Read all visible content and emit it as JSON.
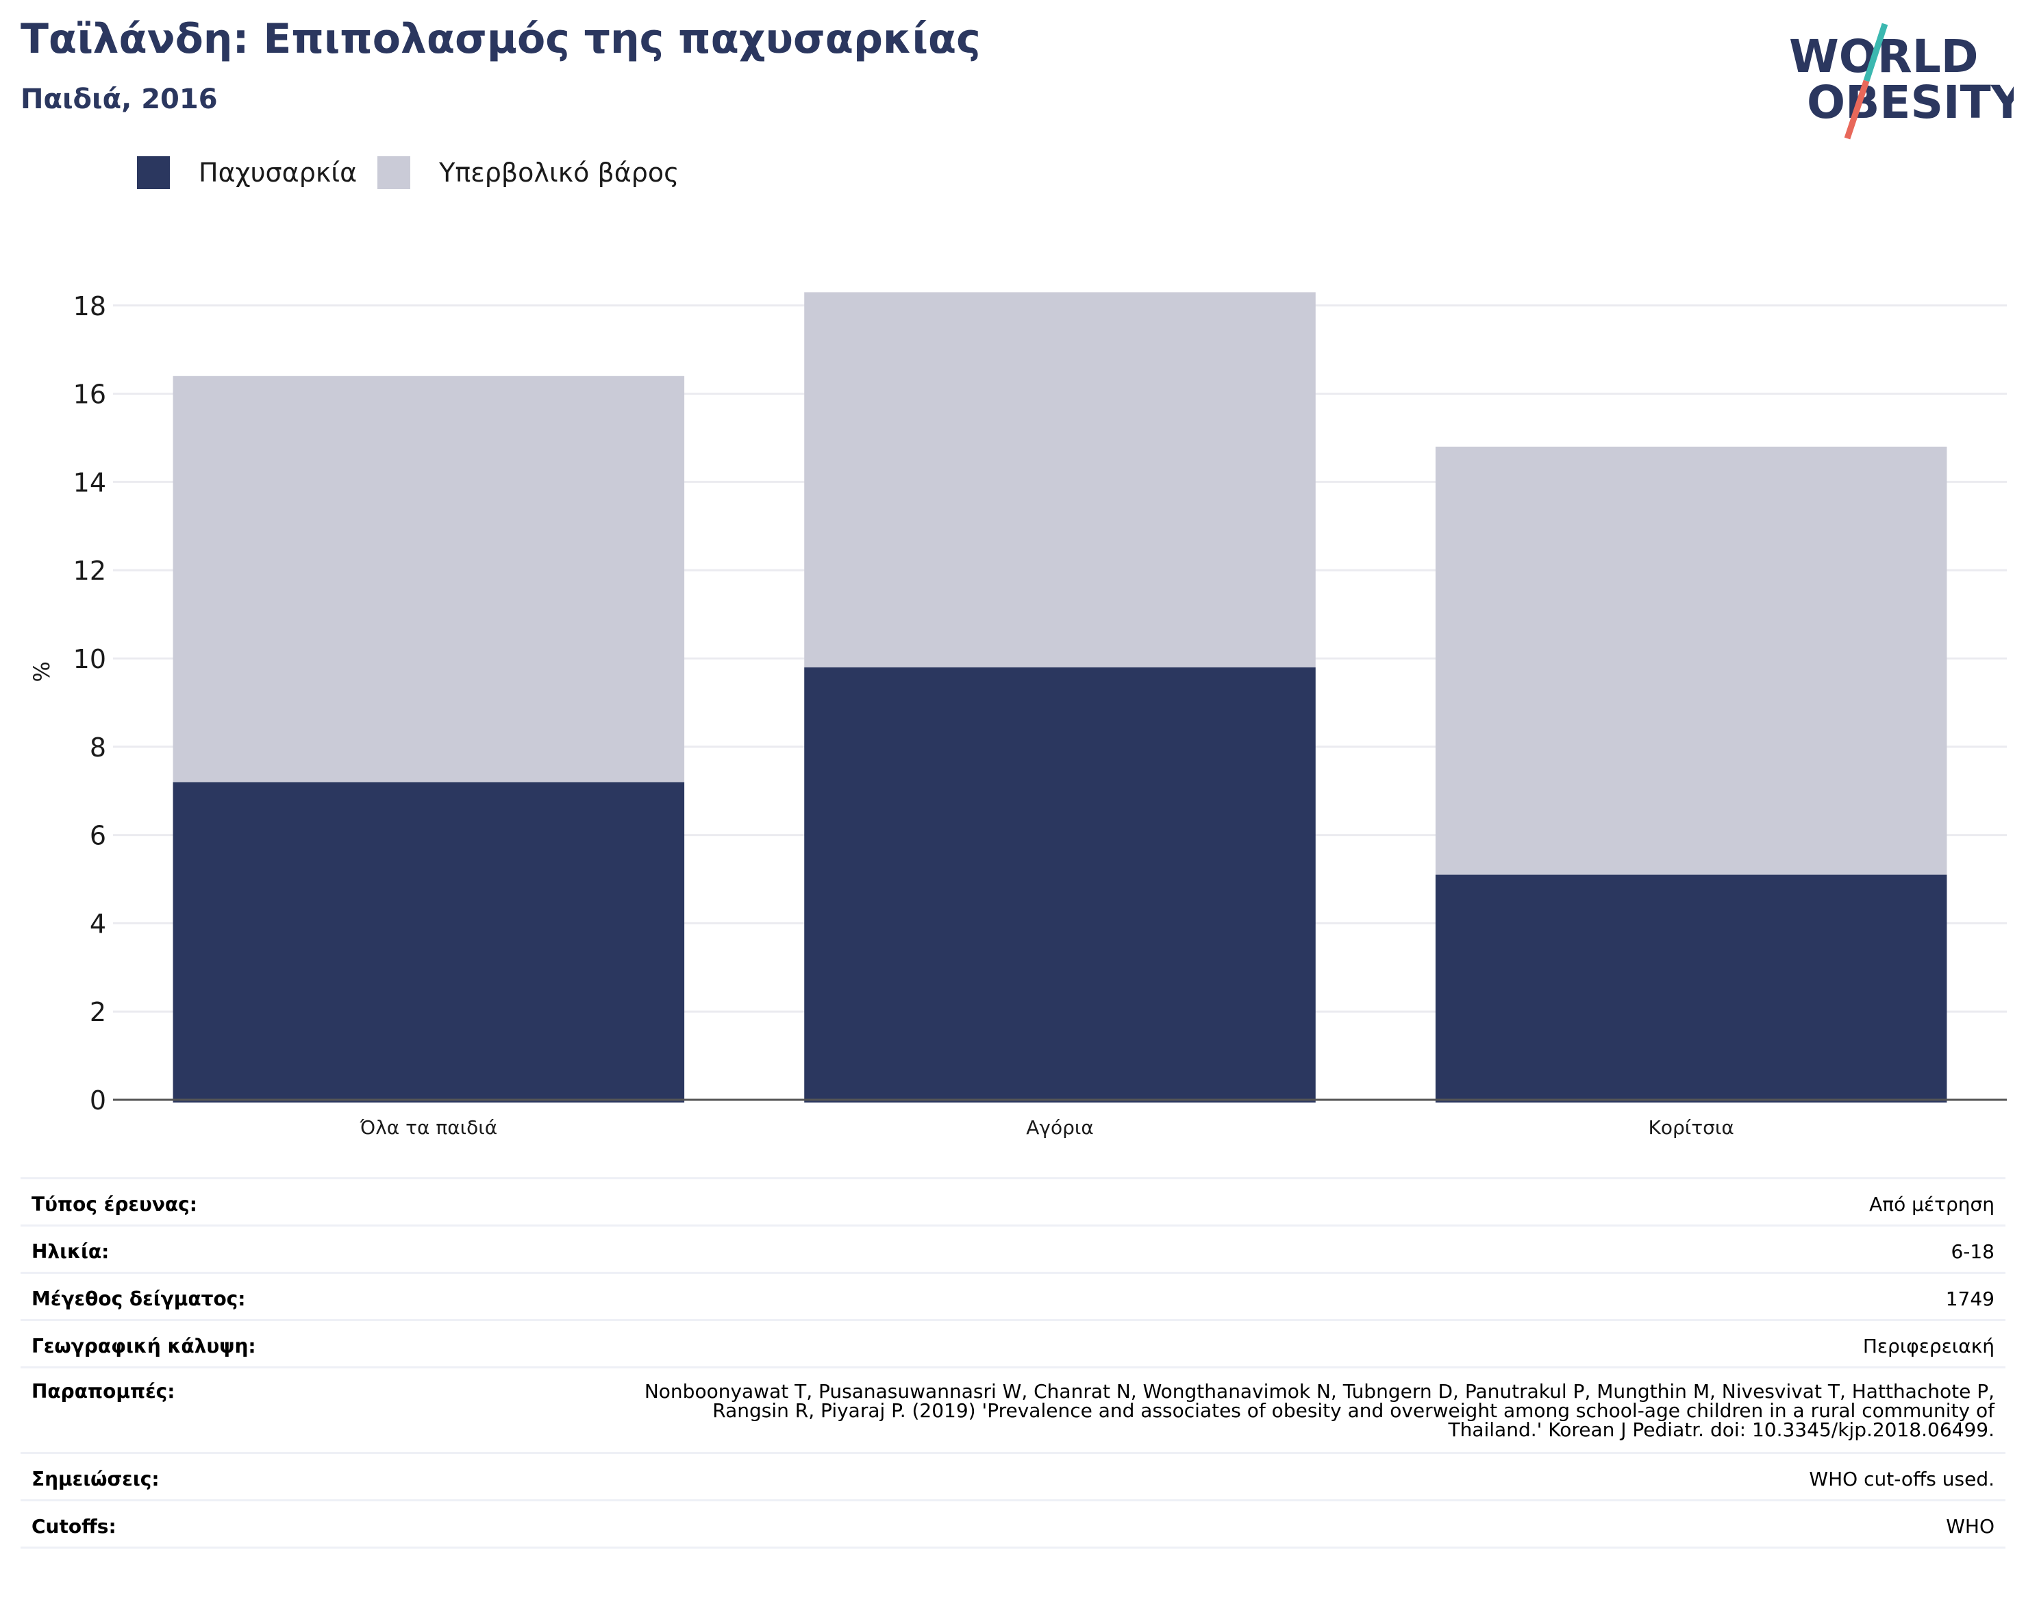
{
  "header": {
    "title": "Ταϊλάνδη: Επιπολασμός της παχυσαρκίας",
    "subtitle": "Παιδιά, 2016"
  },
  "logo": {
    "line1": "WORLD",
    "line2": "OBESITY",
    "colors": {
      "text": "#2b375f",
      "slash_top": "#3bb8b0",
      "slash_bottom": "#e8685a"
    }
  },
  "legend": [
    {
      "label": "Παχυσαρκία",
      "color": "#2b375f"
    },
    {
      "label": "Υπερβολικό βάρος",
      "color": "#cacbd7"
    }
  ],
  "chart_data": {
    "type": "bar",
    "stacked": true,
    "categories": [
      "Όλα τα παιδιά",
      "Αγόρια",
      "Κορίτσια"
    ],
    "series": [
      {
        "name": "Παχυσαρκία",
        "values": [
          7.2,
          9.8,
          5.1
        ],
        "color": "#2b375f"
      },
      {
        "name": "Υπερβολικό βάρος",
        "values": [
          9.2,
          8.5,
          9.7
        ],
        "color": "#cacbd7"
      }
    ],
    "ylabel": "%",
    "ylim": [
      0,
      18.4
    ],
    "yticks": [
      0,
      2,
      4,
      6,
      8,
      10,
      12,
      14,
      16,
      18
    ],
    "grid": true,
    "legend_position": "top-left"
  },
  "info": {
    "survey_type": {
      "label": "Τύπος έρευνας:",
      "value": "Από μέτρηση"
    },
    "age": {
      "label": "Ηλικία:",
      "value": "6-18"
    },
    "sample_size": {
      "label": "Μέγεθος δείγματος:",
      "value": "1749"
    },
    "coverage": {
      "label": "Γεωγραφική κάλυψη:",
      "value": "Περιφερειακή"
    },
    "references": {
      "label": "Παραπομπές:",
      "lines": [
        "Nonboonyawat T, Pusanasuwannasri W, Chanrat N, Wongthanavimok N, Tubngern D, Panutrakul P, Mungthin M, Nivesvivat T, Hatthachote P,",
        "Rangsin R, Piyaraj P. (2019) 'Prevalence and associates of obesity and overweight among school-age children in a rural community of",
        "Thailand.' Korean J Pediatr. doi: 10.3345/kjp.2018.06499."
      ]
    },
    "notes": {
      "label": "Σημειώσεις:",
      "value": "WHO cut-offs used."
    },
    "cutoffs": {
      "label": "Cutoffs:",
      "value": "WHO"
    }
  }
}
